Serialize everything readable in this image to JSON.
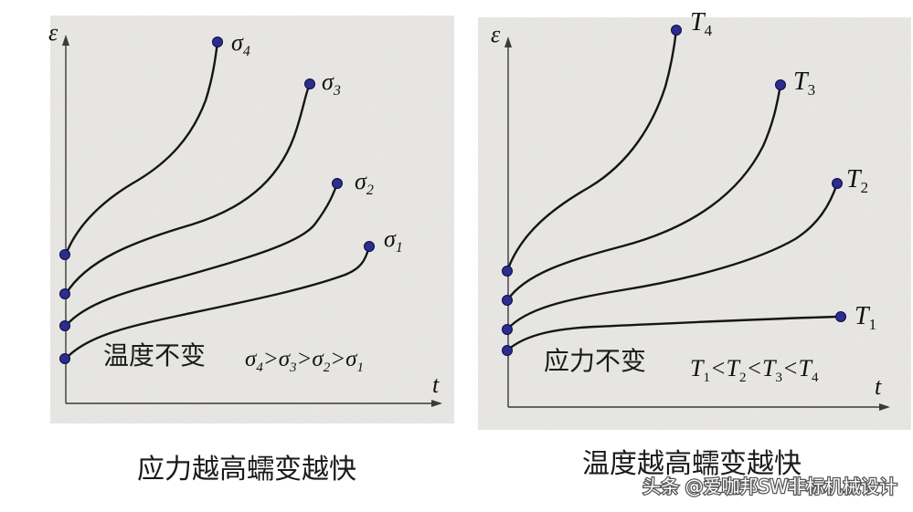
{
  "left_panel": {
    "axis_y": "ε",
    "axis_x": "t",
    "condition_label": "温度不变",
    "relation": [
      "σ",
      "4",
      ">σ",
      "3",
      ">σ",
      "2",
      ">σ",
      "1"
    ],
    "curves": [
      {
        "symbol": "σ",
        "sub": "1"
      },
      {
        "symbol": "σ",
        "sub": "2"
      },
      {
        "symbol": "σ",
        "sub": "3"
      },
      {
        "symbol": "σ",
        "sub": "4"
      }
    ],
    "caption": "应力越高蠕变越快"
  },
  "right_panel": {
    "axis_y": "ε",
    "axis_x": "t",
    "condition_label": "应力不变",
    "relation": [
      "T",
      "1",
      "<T",
      "2",
      "<T",
      "3",
      "<T",
      "4"
    ],
    "curves": [
      {
        "symbol": "T",
        "sub": "1"
      },
      {
        "symbol": "T",
        "sub": "2"
      },
      {
        "symbol": "T",
        "sub": "3"
      },
      {
        "symbol": "T",
        "sub": "4"
      }
    ],
    "caption": "温度越高蠕变越快"
  },
  "watermark": "头条 @爱咖邦SW非标机械设计",
  "colors": {
    "dot": "#2b2d8f",
    "curve": "#151515",
    "panel": "#e9e9e7"
  }
}
